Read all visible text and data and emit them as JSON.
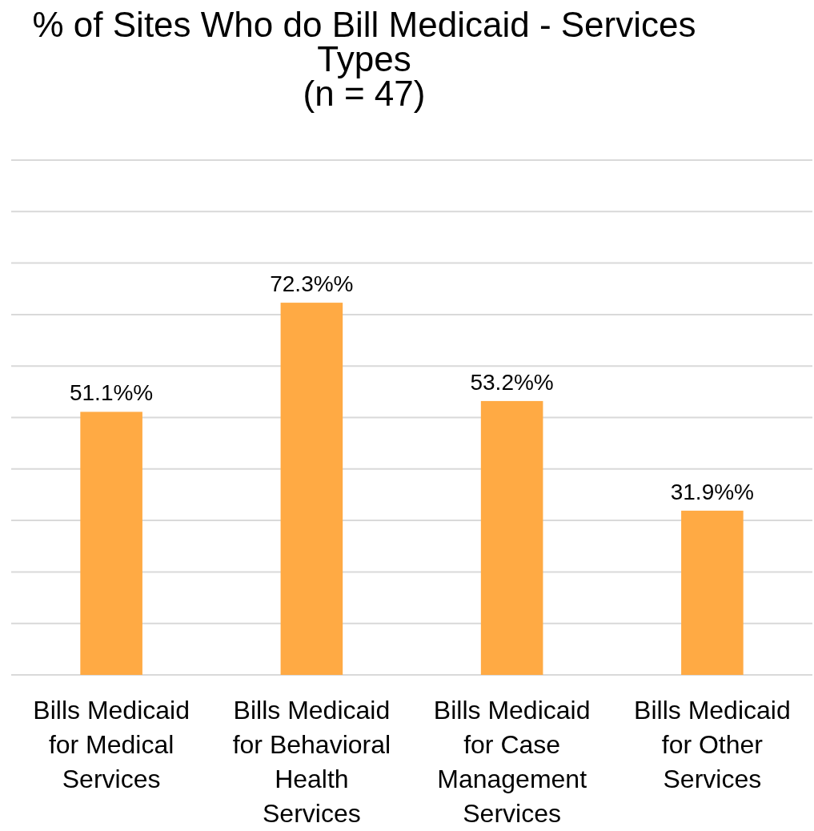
{
  "chart_data": {
    "type": "bar",
    "title": "% of Sites Who do Bill Medicaid - Services Types\n(n = 47)",
    "categories": [
      "Bills Medicaid for Medical Services",
      "Bills Medicaid for Behavioral Health Services",
      "Bills Medicaid for Case Management Services",
      "Bills Medicaid for Other Services"
    ],
    "values": [
      51.1,
      72.3,
      53.2,
      31.9
    ],
    "value_labels": [
      "51.1%%",
      "72.3%%",
      "53.2%%",
      "31.9%%"
    ],
    "color": "#ffaa44",
    "ylim": [
      0,
      100
    ],
    "yticks": [
      {
        "value": 0,
        "label": null
      },
      {
        "value": 10,
        "label": null
      },
      {
        "value": 20,
        "label": null
      },
      {
        "value": 30,
        "label": null
      },
      {
        "value": 40,
        "label": null
      },
      {
        "value": 50,
        "label": null
      },
      {
        "value": 60,
        "label": null
      },
      {
        "value": 70,
        "label": null
      },
      {
        "value": 80,
        "label": null
      },
      {
        "value": 90,
        "label": null
      },
      {
        "value": 100,
        "label": null
      }
    ],
    "tick_labels": "x",
    "grid": "y"
  }
}
